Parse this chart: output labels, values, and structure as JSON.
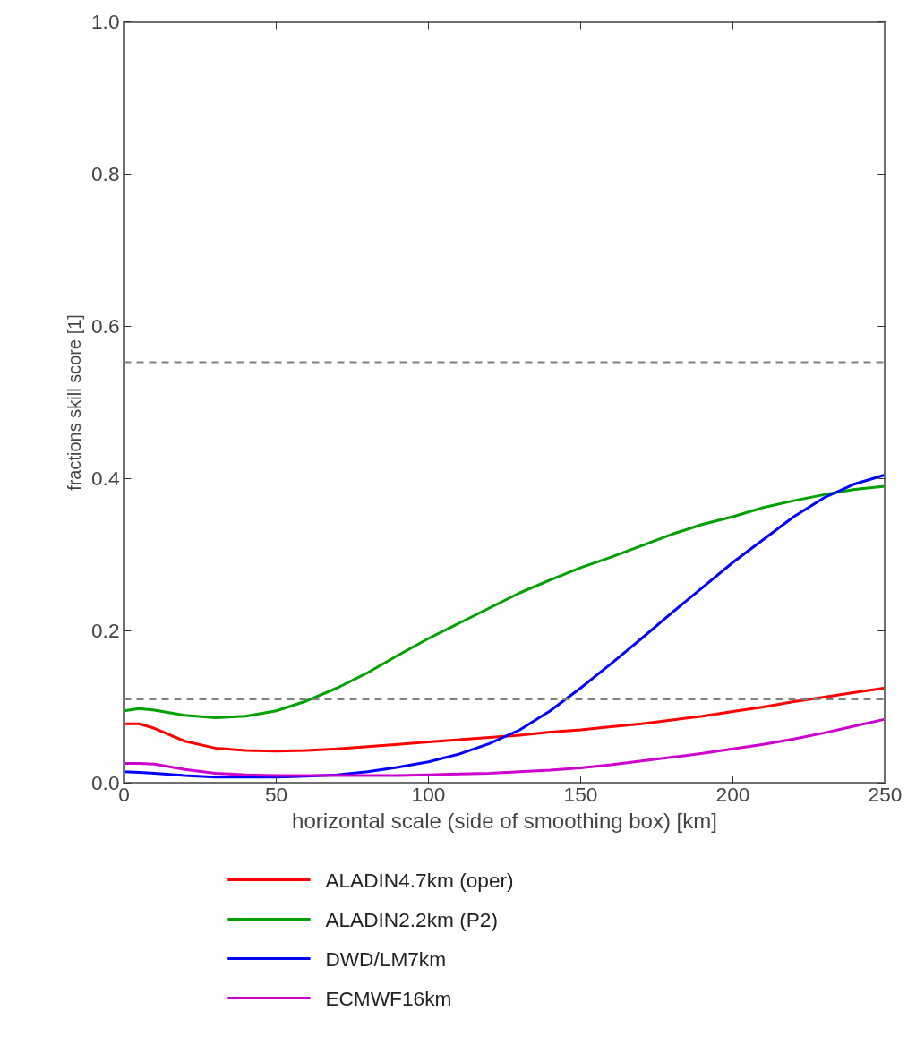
{
  "chart_data": {
    "type": "line",
    "xlabel": "horizontal scale (side of smoothing box) [km]",
    "ylabel": "fractions skill score [1]",
    "x": [
      0,
      5,
      10,
      20,
      30,
      40,
      50,
      60,
      70,
      80,
      90,
      100,
      110,
      120,
      130,
      140,
      150,
      160,
      170,
      180,
      190,
      200,
      210,
      220,
      230,
      240,
      250
    ],
    "series": [
      {
        "name": "ALADIN4.7km (oper)",
        "color": "#ff0000",
        "values": [
          0.078,
          0.078,
          0.072,
          0.055,
          0.046,
          0.043,
          0.042,
          0.043,
          0.045,
          0.048,
          0.051,
          0.054,
          0.057,
          0.06,
          0.063,
          0.067,
          0.07,
          0.074,
          0.078,
          0.083,
          0.088,
          0.094,
          0.1,
          0.107,
          0.113,
          0.119,
          0.125
        ]
      },
      {
        "name": "ALADIN2.2km (P2)",
        "color": "#00a000",
        "values": [
          0.095,
          0.098,
          0.096,
          0.089,
          0.086,
          0.088,
          0.095,
          0.108,
          0.125,
          0.145,
          0.168,
          0.19,
          0.21,
          0.23,
          0.25,
          0.267,
          0.283,
          0.297,
          0.312,
          0.327,
          0.34,
          0.35,
          0.362,
          0.371,
          0.379,
          0.386,
          0.39
        ]
      },
      {
        "name": "DWD/LM7km",
        "color": "#0000ff",
        "values": [
          0.015,
          0.014,
          0.013,
          0.01,
          0.008,
          0.008,
          0.008,
          0.009,
          0.011,
          0.015,
          0.021,
          0.028,
          0.038,
          0.052,
          0.07,
          0.095,
          0.125,
          0.157,
          0.19,
          0.224,
          0.257,
          0.29,
          0.32,
          0.35,
          0.375,
          0.393,
          0.405
        ]
      },
      {
        "name": "ECMWF16km",
        "color": "#cc00cc",
        "values": [
          0.026,
          0.026,
          0.025,
          0.018,
          0.013,
          0.011,
          0.01,
          0.01,
          0.01,
          0.01,
          0.01,
          0.011,
          0.012,
          0.013,
          0.015,
          0.017,
          0.02,
          0.024,
          0.029,
          0.034,
          0.039,
          0.045,
          0.051,
          0.058,
          0.066,
          0.075,
          0.084
        ]
      }
    ],
    "ref_lines": [
      {
        "axis": "y",
        "value": 0.11,
        "color": "#808080",
        "line_style": "dashed"
      },
      {
        "axis": "y",
        "value": 0.553,
        "color": "#808080",
        "line_style": "dashed"
      }
    ],
    "xlim": [
      0,
      250
    ],
    "ylim": [
      0,
      1
    ],
    "xticks": [
      0,
      50,
      100,
      150,
      200,
      250
    ],
    "yticks": [
      {
        "value": 0,
        "label": "0.0"
      },
      {
        "value": 0.2,
        "label": "0.2"
      },
      {
        "value": 0.4,
        "label": "0.4"
      },
      {
        "value": 0.6,
        "label": "0.6"
      },
      {
        "value": 0.8,
        "label": "0.8"
      },
      {
        "value": 1,
        "label": "1.0"
      }
    ],
    "grid": false,
    "legend": "bottom",
    "line_style": "solid",
    "marker": "none"
  }
}
